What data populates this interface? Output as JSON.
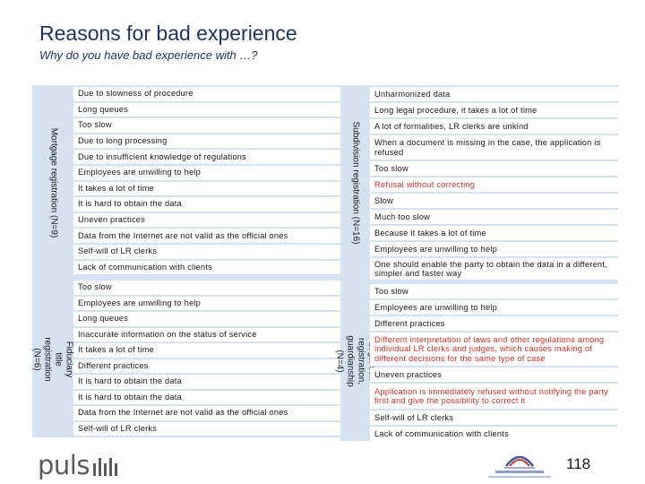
{
  "title": "Reasons for bad experience",
  "subtitle": "Why do you have bad experience with …?",
  "left_panels": [
    {
      "label": "Mortgage registration (N=9)",
      "rows": [
        {
          "text": "Due to slowness of procedure"
        },
        {
          "text": "Long queues"
        },
        {
          "text": "Too slow"
        },
        {
          "text": "Due to long processing"
        },
        {
          "text": "Due to insufficient knowledge of regulations"
        },
        {
          "text": "Employees are unwilling to help"
        },
        {
          "text": "It takes a lot of time"
        },
        {
          "text": "It is hard to obtain the data"
        },
        {
          "text": "Uneven practices"
        },
        {
          "text": "Data from the Internet are not valid as the official ones"
        },
        {
          "text": "Self-will of LR clerks"
        },
        {
          "text": "Lack of communication with clients"
        }
      ]
    },
    {
      "label": "Fiduciary title registration (N=6)",
      "rows": [
        {
          "text": "Too slow"
        },
        {
          "text": "Employees are unwilling to help"
        },
        {
          "text": "Long queues"
        },
        {
          "text": "Inaccurate information on the status of service"
        },
        {
          "text": "It takes a lot of time"
        },
        {
          "text": "Different practices"
        },
        {
          "text": "It is hard to obtain the data"
        },
        {
          "text": "It is hard to obtain the data"
        },
        {
          "text": "Data from the Internet are not valid as the official ones"
        },
        {
          "text": "Self-will of LR clerks"
        }
      ]
    }
  ],
  "right_panels": [
    {
      "label": "Subdivision registration (N=16)",
      "rows": [
        {
          "text": "Unharmonized data"
        },
        {
          "text": "Long legal procedure, it takes a lot of time"
        },
        {
          "text": "A lot of formalities, LR clerks are unkind"
        },
        {
          "text": "When a document is missing in the case, the application is refused"
        },
        {
          "text": "Too slow"
        },
        {
          "text": "Refusal without correcting",
          "highlight": true
        },
        {
          "text": "Slow"
        },
        {
          "text": "Much too slow"
        },
        {
          "text": "Because it takes a lot of time"
        },
        {
          "text": "Employees are unwilling to help"
        },
        {
          "text": "One should enable the party to obtain the data in a different, simpler and faster way"
        }
      ]
    },
    {
      "label": "Legal suit registration, guardianship (N=4)",
      "rows": [
        {
          "text": "Too slow"
        },
        {
          "text": "Employees are unwilling to help"
        },
        {
          "text": "Different practices"
        },
        {
          "text": "Different interpretation of laws and other regulations among individual LR clerks and judges, which causes making of different decisions for the same type of case",
          "highlight": true
        },
        {
          "text": "Uneven practices"
        },
        {
          "text": "Application is immediately refused without notifying the party first and give the possibility to correct it",
          "highlight": true
        },
        {
          "text": "Self-will of LR clerks"
        },
        {
          "text": "Lack of communication with clients"
        }
      ]
    }
  ],
  "footer": {
    "logo_text": "puls",
    "page_number": "118"
  },
  "colors": {
    "panel": "#d5e2f0",
    "title": "#1f3562",
    "highlight": "#d0322b"
  }
}
